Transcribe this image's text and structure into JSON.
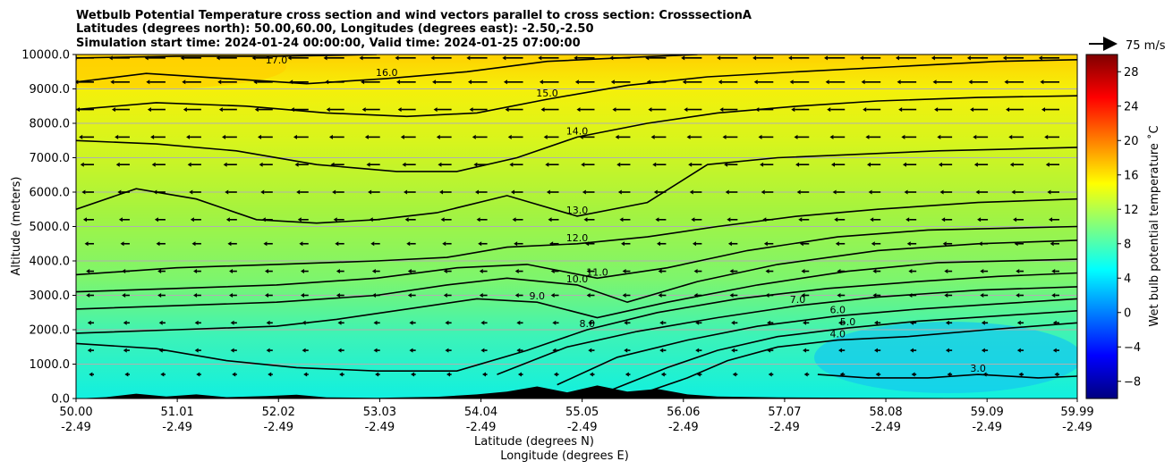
{
  "chart_data": {
    "type": "heatmap",
    "title_lines": [
      "Wetbulb Potential Temperature cross section and wind vectors parallel to cross section: CrosssectionA",
      "Latitudes (degrees north): 50.00,60.00, Longitudes (degrees east): -2.50,-2.50",
      "Simulation start time: 2024-01-24 00:00:00, Valid time: 2024-01-25 07:00:00"
    ],
    "xlabel_lat": "Latitude (degrees N)",
    "xlabel_lon": "Longitude (degrees E)",
    "ylabel": "Altitude (meters)",
    "colorbar_label": "Wet bulb potential temperature $^\\circ$C",
    "colorbar_label_display": "Wet bulb potential temperature ˚C",
    "quiver_key_label": "75 m/s",
    "x_ticks_lat": [
      "50.00",
      "51.01",
      "52.02",
      "53.03",
      "54.04",
      "55.05",
      "56.06",
      "57.07",
      "58.08",
      "59.09",
      "59.99"
    ],
    "x_ticks_lon": [
      "-2.49",
      "-2.49",
      "-2.49",
      "-2.49",
      "-2.49",
      "-2.49",
      "-2.49",
      "-2.49",
      "-2.49",
      "-2.49",
      "-2.49"
    ],
    "x_tick_values": [
      50.0,
      51.01,
      52.02,
      53.03,
      54.04,
      55.05,
      56.06,
      57.07,
      58.08,
      59.09,
      59.99
    ],
    "xlim": [
      50.0,
      59.99
    ],
    "y_ticks": [
      "0.0",
      "1000.0",
      "2000.0",
      "3000.0",
      "4000.0",
      "5000.0",
      "6000.0",
      "7000.0",
      "8000.0",
      "9000.0",
      "10000.0"
    ],
    "y_tick_values": [
      0,
      1000,
      2000,
      3000,
      4000,
      5000,
      6000,
      7000,
      8000,
      9000,
      10000
    ],
    "ylim": [
      0,
      10000
    ],
    "colorbar_ticks": [
      "−8",
      "−4",
      "0",
      "4",
      "8",
      "12",
      "16",
      "20",
      "24",
      "28"
    ],
    "colorbar_tick_values": [
      -8,
      -4,
      0,
      4,
      8,
      12,
      16,
      20,
      24,
      28
    ],
    "colorbar_range": [
      -10,
      30
    ],
    "grid": "horizontal",
    "colormap": "jet",
    "contours": [
      {
        "level": 3,
        "label": "3.0",
        "points": [
          [
            57.4,
            700
          ],
          [
            57.9,
            600
          ],
          [
            58.5,
            600
          ],
          [
            59.0,
            700
          ],
          [
            59.6,
            600
          ],
          [
            59.99,
            650
          ]
        ]
      },
      {
        "level": 4,
        "label": "4.0",
        "points": [
          [
            55.6,
            100
          ],
          [
            56.1,
            600
          ],
          [
            56.5,
            1100
          ],
          [
            57.0,
            1500
          ],
          [
            57.6,
            1700
          ],
          [
            58.3,
            1800
          ],
          [
            59.1,
            2000
          ],
          [
            59.99,
            2200
          ]
        ]
      },
      {
        "level": 5,
        "label": "5.0",
        "points": [
          [
            55.3,
            200
          ],
          [
            55.9,
            900
          ],
          [
            56.4,
            1400
          ],
          [
            57.0,
            1800
          ],
          [
            57.7,
            2050
          ],
          [
            58.4,
            2250
          ],
          [
            59.2,
            2400
          ],
          [
            59.99,
            2550
          ]
        ]
      },
      {
        "level": 6,
        "label": "6.0",
        "points": [
          [
            54.8,
            400
          ],
          [
            55.4,
            1200
          ],
          [
            56.1,
            1700
          ],
          [
            56.8,
            2100
          ],
          [
            57.6,
            2400
          ],
          [
            58.4,
            2600
          ],
          [
            59.2,
            2750
          ],
          [
            59.99,
            2900
          ]
        ]
      },
      {
        "level": 7,
        "label": "7.0",
        "points": [
          [
            54.2,
            700
          ],
          [
            54.9,
            1500
          ],
          [
            55.6,
            1950
          ],
          [
            56.4,
            2350
          ],
          [
            57.2,
            2700
          ],
          [
            58.0,
            2950
          ],
          [
            59.0,
            3150
          ],
          [
            59.99,
            3250
          ]
        ]
      },
      {
        "level": 8,
        "label": "8.0",
        "points": [
          [
            50.0,
            1600
          ],
          [
            50.8,
            1450
          ],
          [
            51.5,
            1100
          ],
          [
            52.2,
            900
          ],
          [
            53.0,
            800
          ],
          [
            53.8,
            800
          ],
          [
            54.5,
            1400
          ],
          [
            55.1,
            2000
          ],
          [
            55.8,
            2500
          ],
          [
            56.6,
            2900
          ],
          [
            57.5,
            3200
          ],
          [
            58.4,
            3400
          ],
          [
            59.2,
            3550
          ],
          [
            59.99,
            3650
          ]
        ]
      },
      {
        "level": 9,
        "label": "9.0",
        "points": [
          [
            50.0,
            1900
          ],
          [
            51.0,
            2000
          ],
          [
            52.0,
            2100
          ],
          [
            52.6,
            2300
          ],
          [
            53.3,
            2600
          ],
          [
            54.0,
            2900
          ],
          [
            54.6,
            2800
          ],
          [
            55.2,
            2350
          ],
          [
            55.9,
            2800
          ],
          [
            56.8,
            3300
          ],
          [
            57.7,
            3700
          ],
          [
            58.6,
            3950
          ],
          [
            59.99,
            4050
          ]
        ]
      },
      {
        "level": 10,
        "label": "10.0",
        "points": [
          [
            50.0,
            2600
          ],
          [
            51.0,
            2700
          ],
          [
            52.0,
            2800
          ],
          [
            53.0,
            3000
          ],
          [
            53.7,
            3300
          ],
          [
            54.3,
            3500
          ],
          [
            55.0,
            3300
          ],
          [
            55.5,
            2800
          ],
          [
            56.2,
            3400
          ],
          [
            57.0,
            3900
          ],
          [
            58.0,
            4300
          ],
          [
            59.0,
            4500
          ],
          [
            59.99,
            4600
          ]
        ]
      },
      {
        "level": 11,
        "label": "11.0",
        "points": [
          [
            50.0,
            3100
          ],
          [
            51.0,
            3200
          ],
          [
            52.0,
            3300
          ],
          [
            53.0,
            3500
          ],
          [
            53.8,
            3800
          ],
          [
            54.5,
            3900
          ],
          [
            55.2,
            3500
          ],
          [
            55.9,
            3800
          ],
          [
            56.7,
            4300
          ],
          [
            57.6,
            4700
          ],
          [
            58.5,
            4900
          ],
          [
            59.99,
            5000
          ]
        ]
      },
      {
        "level": 12,
        "label": "12.0",
        "points": [
          [
            50.0,
            3600
          ],
          [
            51.0,
            3800
          ],
          [
            52.0,
            3900
          ],
          [
            53.0,
            4000
          ],
          [
            53.7,
            4100
          ],
          [
            54.3,
            4400
          ],
          [
            55.0,
            4500
          ],
          [
            55.7,
            4700
          ],
          [
            56.4,
            5000
          ],
          [
            57.2,
            5300
          ],
          [
            58.0,
            5500
          ],
          [
            59.0,
            5700
          ],
          [
            59.99,
            5800
          ]
        ]
      },
      {
        "level": 13,
        "label": "13.0",
        "points": [
          [
            50.0,
            5500
          ],
          [
            50.6,
            6100
          ],
          [
            51.2,
            5800
          ],
          [
            51.8,
            5200
          ],
          [
            52.4,
            5100
          ],
          [
            53.0,
            5200
          ],
          [
            53.6,
            5400
          ],
          [
            54.3,
            5900
          ],
          [
            55.0,
            5300
          ],
          [
            55.7,
            5700
          ],
          [
            56.3,
            6800
          ],
          [
            57.0,
            7000
          ],
          [
            57.8,
            7100
          ],
          [
            58.6,
            7200
          ],
          [
            59.3,
            7250
          ],
          [
            59.99,
            7300
          ]
        ]
      },
      {
        "level": 14,
        "label": "14.0",
        "points": [
          [
            50.0,
            7500
          ],
          [
            50.8,
            7400
          ],
          [
            51.6,
            7200
          ],
          [
            52.4,
            6800
          ],
          [
            53.2,
            6600
          ],
          [
            53.8,
            6600
          ],
          [
            54.4,
            7000
          ],
          [
            55.0,
            7600
          ],
          [
            55.7,
            8000
          ],
          [
            56.4,
            8300
          ],
          [
            57.2,
            8500
          ],
          [
            58.0,
            8650
          ],
          [
            59.0,
            8750
          ],
          [
            59.99,
            8800
          ]
        ]
      },
      {
        "level": 15,
        "label": "15.0",
        "points": [
          [
            50.0,
            8400
          ],
          [
            50.8,
            8600
          ],
          [
            51.7,
            8500
          ],
          [
            52.5,
            8300
          ],
          [
            53.3,
            8200
          ],
          [
            54.0,
            8300
          ],
          [
            54.7,
            8700
          ],
          [
            55.5,
            9100
          ],
          [
            56.3,
            9350
          ],
          [
            57.2,
            9500
          ],
          [
            58.2,
            9650
          ],
          [
            59.2,
            9800
          ],
          [
            59.99,
            9850
          ]
        ]
      },
      {
        "level": 16,
        "label": "16.0",
        "points": [
          [
            50.0,
            9200
          ],
          [
            50.7,
            9450
          ],
          [
            51.5,
            9300
          ],
          [
            52.3,
            9150
          ],
          [
            53.1,
            9300
          ],
          [
            53.9,
            9500
          ],
          [
            54.7,
            9800
          ],
          [
            55.4,
            9900
          ],
          [
            56.2,
            10000
          ]
        ]
      },
      {
        "level": 17,
        "label": "17.0",
        "points": [
          [
            50.0,
            9900
          ],
          [
            51.0,
            9950
          ],
          [
            52.0,
            9950
          ],
          [
            53.0,
            10000
          ]
        ]
      }
    ],
    "terrain": [
      [
        50.0,
        0
      ],
      [
        50.3,
        40
      ],
      [
        50.6,
        140
      ],
      [
        50.9,
        60
      ],
      [
        51.2,
        120
      ],
      [
        51.5,
        40
      ],
      [
        51.9,
        70
      ],
      [
        52.2,
        110
      ],
      [
        52.5,
        30
      ],
      [
        53.0,
        20
      ],
      [
        53.6,
        50
      ],
      [
        54.0,
        120
      ],
      [
        54.3,
        200
      ],
      [
        54.6,
        350
      ],
      [
        54.9,
        180
      ],
      [
        55.2,
        380
      ],
      [
        55.5,
        200
      ],
      [
        55.8,
        280
      ],
      [
        56.1,
        120
      ],
      [
        56.4,
        60
      ],
      [
        57.0,
        30
      ],
      [
        59.99,
        0
      ]
    ],
    "wind_vectors": [
      {
        "alt": 9900,
        "u": -12
      },
      {
        "alt": 9200,
        "u": -11
      },
      {
        "alt": 8400,
        "u": -10
      },
      {
        "alt": 7600,
        "u": -8
      },
      {
        "alt": 6800,
        "u": -7
      },
      {
        "alt": 6000,
        "u": -6
      },
      {
        "alt": 5200,
        "u": -5
      },
      {
        "alt": 4500,
        "u": -4
      },
      {
        "alt": 3700,
        "u": -3
      },
      {
        "alt": 3000,
        "u": -3
      },
      {
        "alt": 2200,
        "u": -2
      },
      {
        "alt": 1400,
        "u": -2
      },
      {
        "alt": 700,
        "u": -1
      }
    ]
  }
}
